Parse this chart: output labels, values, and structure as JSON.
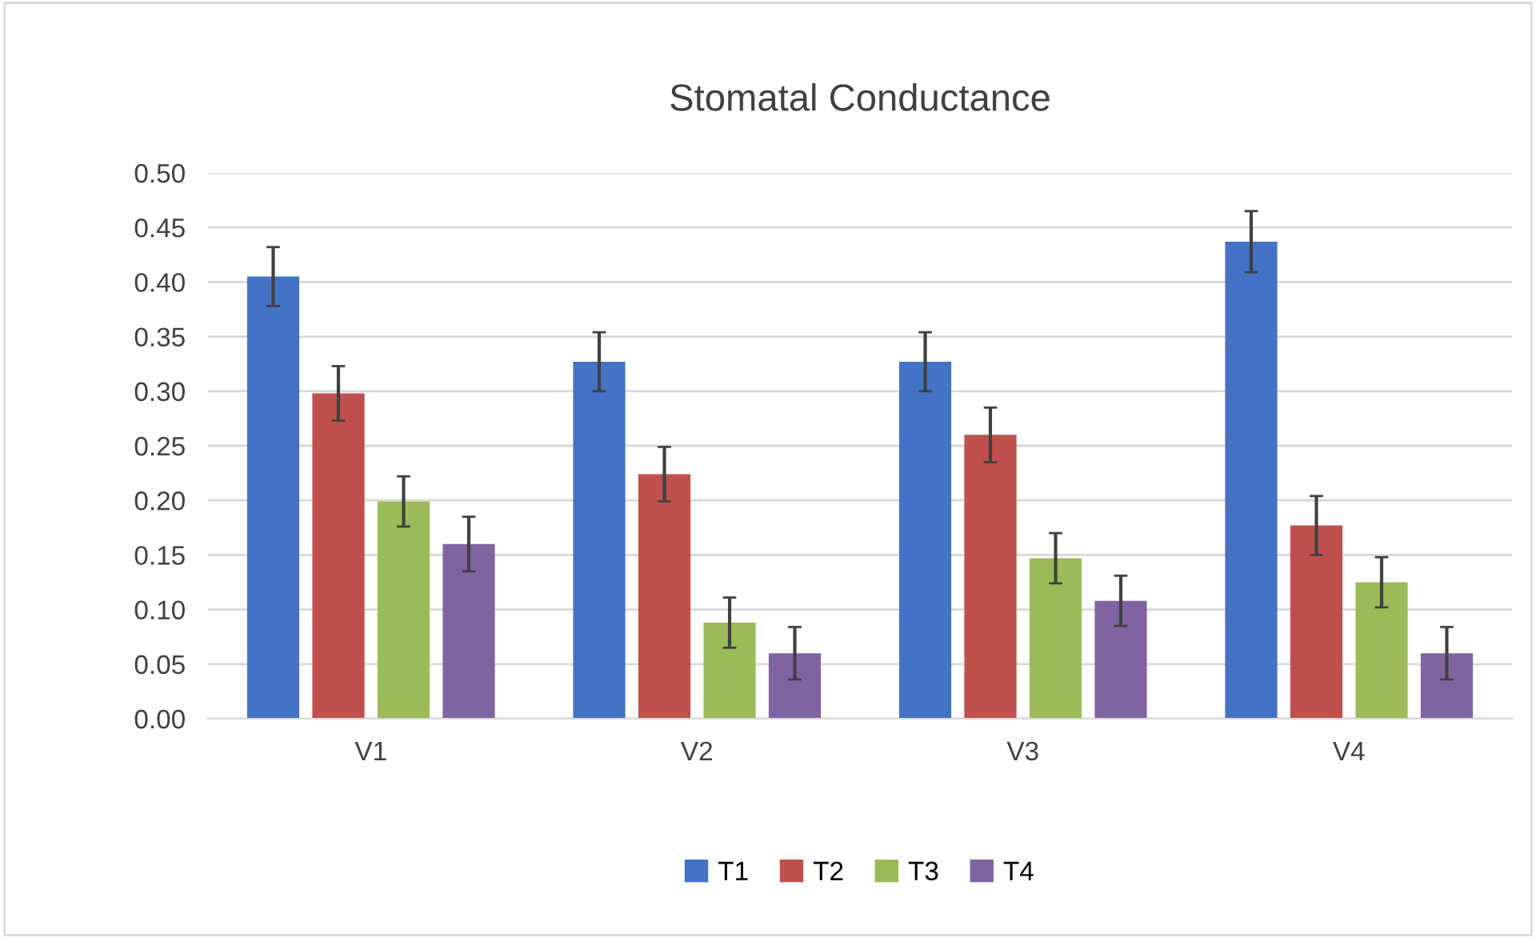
{
  "chart_data": {
    "type": "bar",
    "title": "Stomatal Conductance",
    "categories": [
      "V1",
      "V2",
      "V3",
      "V4"
    ],
    "series": [
      {
        "name": "T1",
        "color": "#4472c4",
        "values": [
          0.405,
          0.327,
          0.327,
          0.437
        ],
        "errors": [
          0.027,
          0.027,
          0.027,
          0.028
        ]
      },
      {
        "name": "T2",
        "color": "#c0504d",
        "values": [
          0.298,
          0.224,
          0.26,
          0.177
        ],
        "errors": [
          0.025,
          0.025,
          0.025,
          0.027
        ]
      },
      {
        "name": "T3",
        "color": "#9bbb59",
        "values": [
          0.199,
          0.088,
          0.147,
          0.125
        ],
        "errors": [
          0.023,
          0.023,
          0.023,
          0.023
        ]
      },
      {
        "name": "T4",
        "color": "#8064a2",
        "values": [
          0.16,
          0.06,
          0.108,
          0.06
        ],
        "errors": [
          0.025,
          0.024,
          0.023,
          0.024
        ]
      }
    ],
    "ylim": [
      0,
      0.5
    ],
    "yticks": [
      {
        "value": 0,
        "label": "0.00"
      },
      {
        "value": 0.05,
        "label": "0.05"
      },
      {
        "value": 0.1,
        "label": "0.10"
      },
      {
        "value": 0.15,
        "label": "0.15"
      },
      {
        "value": 0.2,
        "label": "0.20"
      },
      {
        "value": 0.25,
        "label": "0.25"
      },
      {
        "value": 0.3,
        "label": "0.30"
      },
      {
        "value": 0.35,
        "label": "0.35"
      },
      {
        "value": 0.4,
        "label": "0.40"
      },
      {
        "value": 0.45,
        "label": "0.45"
      },
      {
        "value": 0.5,
        "label": "0.50"
      }
    ],
    "grid": "y",
    "legend": "bottom"
  }
}
